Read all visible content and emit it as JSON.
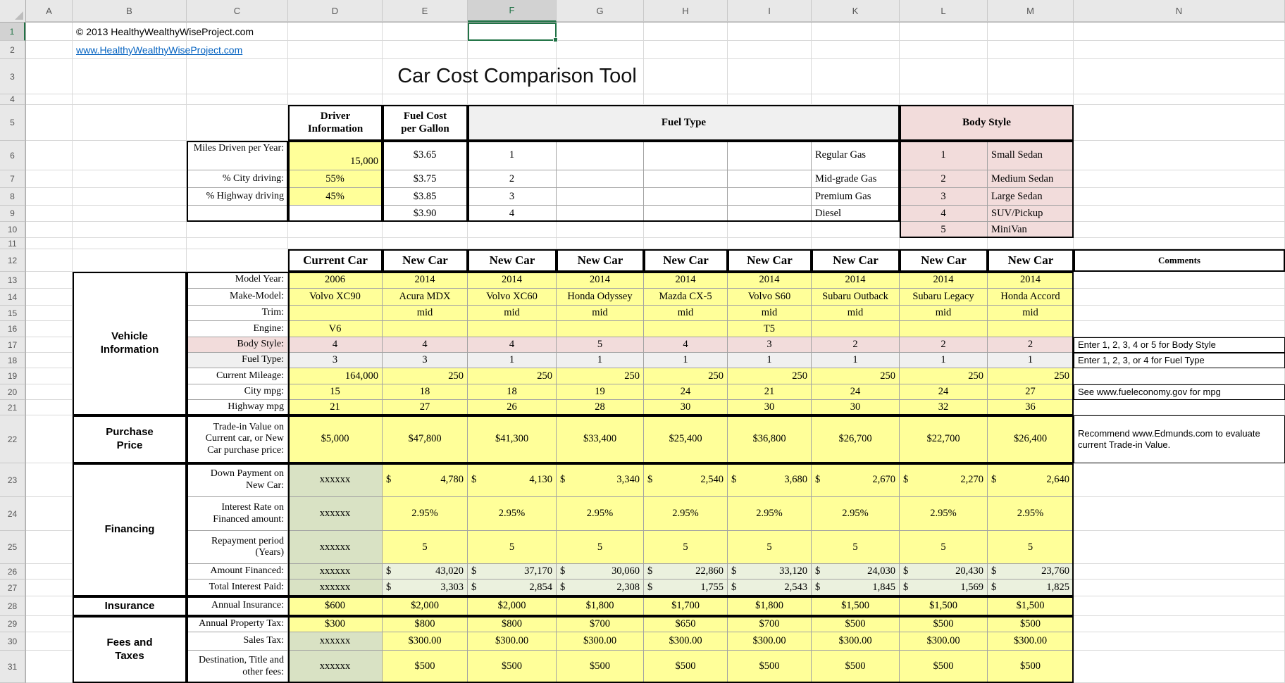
{
  "chrome": {
    "columns": [
      "A",
      "B",
      "C",
      "D",
      "E",
      "F",
      "G",
      "H",
      "I",
      "K",
      "L",
      "M",
      "N"
    ],
    "row_numbers": [
      "1",
      "2",
      "3",
      "4",
      "5",
      "6",
      "7",
      "8",
      "9",
      "10",
      "11",
      "12",
      "13",
      "14",
      "15",
      "16",
      "17",
      "18",
      "19",
      "20",
      "21",
      "22",
      "23",
      "24",
      "25",
      "26",
      "27",
      "28",
      "29",
      "30",
      "31"
    ],
    "selected_column": "F",
    "selected_row": "1",
    "selected_cell": "F1"
  },
  "header": {
    "copyright": "© 2013 HealthyWealthyWiseProject.com",
    "website_link": "www.HealthyWealthyWiseProject.com",
    "title": "Car Cost Comparison Tool"
  },
  "setup": {
    "driver_header": "Driver Information",
    "fuel_cost_header": "Fuel Cost per Gallon",
    "fuel_type_header": "Fuel Type",
    "body_style_header": "Body Style",
    "driver_labels": [
      "Miles Driven per Year:",
      "% City driving:",
      "% Highway driving",
      ""
    ],
    "driver_values": [
      "15,000",
      "55%",
      "45%",
      ""
    ],
    "fuel_costs": [
      "$3.65",
      "$3.75",
      "$3.85",
      "$3.90"
    ],
    "fuel_type_numbers": [
      "1",
      "2",
      "3",
      "4"
    ],
    "fuel_type_names": [
      "Regular Gas",
      "Mid-grade Gas",
      "Premium Gas",
      "Diesel"
    ],
    "body_style_numbers": [
      "1",
      "2",
      "3",
      "4",
      "5"
    ],
    "body_style_names": [
      "Small Sedan",
      "Medium Sedan",
      "Large Sedan",
      "SUV/Pickup",
      "MiniVan"
    ]
  },
  "comparison": {
    "current_car_header": "Current Car",
    "new_car_header": "New Car",
    "comments_header": "Comments",
    "groups": [
      {
        "label": "Vehicle Information"
      },
      {
        "label": "Purchase Price"
      },
      {
        "label": "Financing"
      },
      {
        "label": "Insurance"
      },
      {
        "label": "Fees and Taxes"
      }
    ],
    "rows": [
      {
        "label": "Model Year:",
        "values": [
          "2006",
          "2014",
          "2014",
          "2014",
          "2014",
          "2014",
          "2014",
          "2014",
          "2014"
        ],
        "comment": ""
      },
      {
        "label": "Make-Model:",
        "values": [
          "Volvo XC90",
          "Acura MDX",
          "Volvo XC60",
          "Honda Odyssey",
          "Mazda CX-5",
          "Volvo S60",
          "Subaru Outback",
          "Subaru Legacy",
          "Honda Accord"
        ],
        "comment": ""
      },
      {
        "label": "Trim:",
        "values": [
          "",
          "mid",
          "mid",
          "mid",
          "mid",
          "mid",
          "mid",
          "mid",
          "mid"
        ],
        "comment": ""
      },
      {
        "label": "Engine:",
        "values": [
          "V6",
          "",
          "",
          "",
          "",
          "T5",
          "",
          "",
          ""
        ],
        "comment": ""
      },
      {
        "label": "Body Style:",
        "values": [
          "4",
          "4",
          "4",
          "5",
          "4",
          "3",
          "2",
          "2",
          "2"
        ],
        "comment": "Enter 1, 2, 3, 4 or 5 for Body Style"
      },
      {
        "label": "Fuel Type:",
        "values": [
          "3",
          "3",
          "1",
          "1",
          "1",
          "1",
          "1",
          "1",
          "1"
        ],
        "comment": "Enter 1, 2, 3, or 4 for Fuel Type"
      },
      {
        "label": "Current Mileage:",
        "values": [
          "164,000",
          "250",
          "250",
          "250",
          "250",
          "250",
          "250",
          "250",
          "250"
        ],
        "comment": ""
      },
      {
        "label": "City mpg:",
        "values": [
          "15",
          "18",
          "18",
          "19",
          "24",
          "21",
          "24",
          "24",
          "27"
        ],
        "comment": "See www.fueleconomy.gov for mpg"
      },
      {
        "label": "Highway mpg",
        "values": [
          "21",
          "27",
          "26",
          "28",
          "30",
          "30",
          "30",
          "32",
          "36"
        ],
        "comment": ""
      },
      {
        "label": "Trade-in Value on Current car, or New Car purchase price:",
        "values": [
          "$5,000",
          "$47,800",
          "$41,300",
          "$33,400",
          "$25,400",
          "$36,800",
          "$26,700",
          "$22,700",
          "$26,400"
        ],
        "comment": "Recommend www.Edmunds.com to evaluate current Trade-in Value."
      },
      {
        "label": "Down Payment on New Car:",
        "values": [
          "xxxxxx",
          "$ 4,780",
          "$ 4,130",
          "$ 3,340",
          "$ 2,540",
          "$ 3,680",
          "$ 2,670",
          "$ 2,270",
          "$ 2,640"
        ],
        "comment": ""
      },
      {
        "label": "Interest Rate on Financed amount:",
        "values": [
          "xxxxxx",
          "2.95%",
          "2.95%",
          "2.95%",
          "2.95%",
          "2.95%",
          "2.95%",
          "2.95%",
          "2.95%"
        ],
        "comment": ""
      },
      {
        "label": "Repayment period (Years)",
        "values": [
          "xxxxxx",
          "5",
          "5",
          "5",
          "5",
          "5",
          "5",
          "5",
          "5"
        ],
        "comment": ""
      },
      {
        "label": "Amount Financed:",
        "values": [
          "xxxxxx",
          "$ 43,020",
          "$ 37,170",
          "$ 30,060",
          "$ 22,860",
          "$ 33,120",
          "$ 24,030",
          "$ 20,430",
          "$ 23,760"
        ],
        "comment": ""
      },
      {
        "label": "Total Interest Paid:",
        "values": [
          "xxxxxx",
          "$ 3,303",
          "$ 2,854",
          "$ 2,308",
          "$ 1,755",
          "$ 2,543",
          "$ 1,845",
          "$ 1,569",
          "$ 1,825"
        ],
        "comment": ""
      },
      {
        "label": "Annual Insurance:",
        "values": [
          "$600",
          "$2,000",
          "$2,000",
          "$1,800",
          "$1,700",
          "$1,800",
          "$1,500",
          "$1,500",
          "$1,500"
        ],
        "comment": ""
      },
      {
        "label": "Annual Property Tax:",
        "values": [
          "$300",
          "$800",
          "$800",
          "$700",
          "$650",
          "$700",
          "$500",
          "$500",
          "$500"
        ],
        "comment": ""
      },
      {
        "label": "Sales Tax:",
        "values": [
          "xxxxxx",
          "$300.00",
          "$300.00",
          "$300.00",
          "$300.00",
          "$300.00",
          "$300.00",
          "$300.00",
          "$300.00"
        ],
        "comment": ""
      },
      {
        "label": "Destination, Title and other fees:",
        "values": [
          "xxxxxx",
          "$500",
          "$500",
          "$500",
          "$500",
          "$500",
          "$500",
          "$500",
          "$500"
        ],
        "comment": ""
      }
    ]
  },
  "colors": {
    "accent_green": "#217346",
    "input_yellow": "#FFFF99",
    "body_style_pink": "#F2DCDB",
    "fuel_type_gray": "#F0F0F0",
    "calc_green": "#EBF1DE",
    "locked_green": "#D9E2C4",
    "link_blue": "#0563C1"
  }
}
